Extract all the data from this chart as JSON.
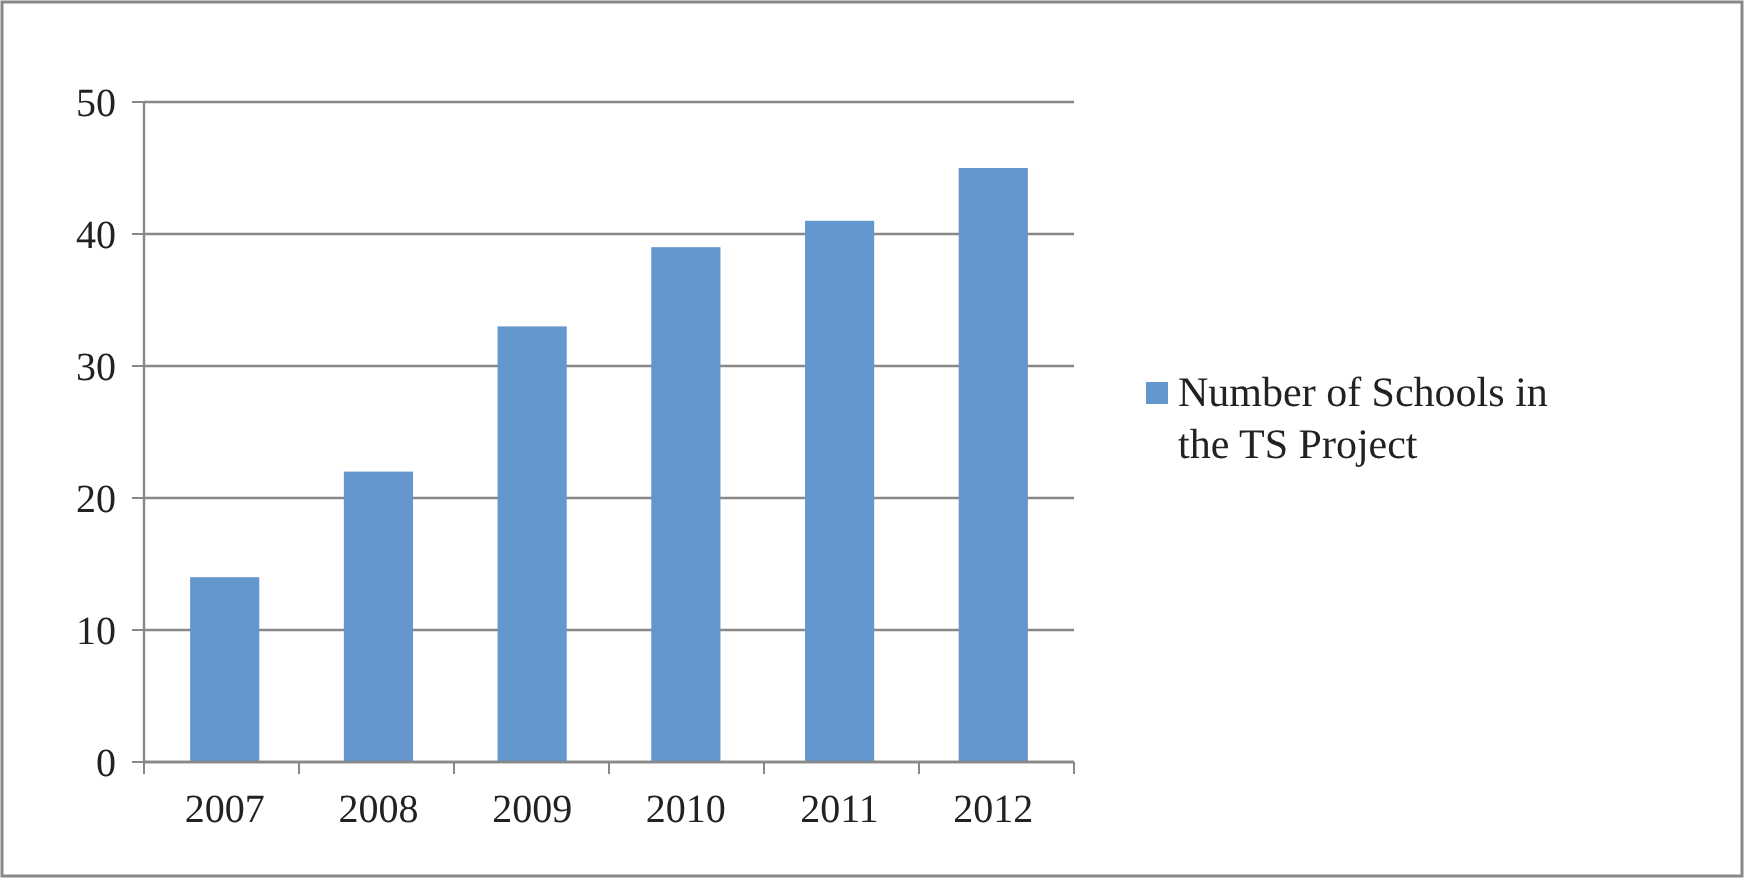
{
  "chart_data": {
    "type": "bar",
    "categories": [
      "2007",
      "2008",
      "2009",
      "2010",
      "2011",
      "2012"
    ],
    "series": [
      {
        "name": "Number of Schools in the TS Project",
        "color": "#6497cd",
        "values": [
          14,
          22,
          33,
          39,
          41,
          45
        ]
      }
    ],
    "ylim": [
      0,
      50
    ],
    "yticks": [
      0,
      10,
      20,
      30,
      40,
      50
    ],
    "grid": "y",
    "legend": "right"
  }
}
